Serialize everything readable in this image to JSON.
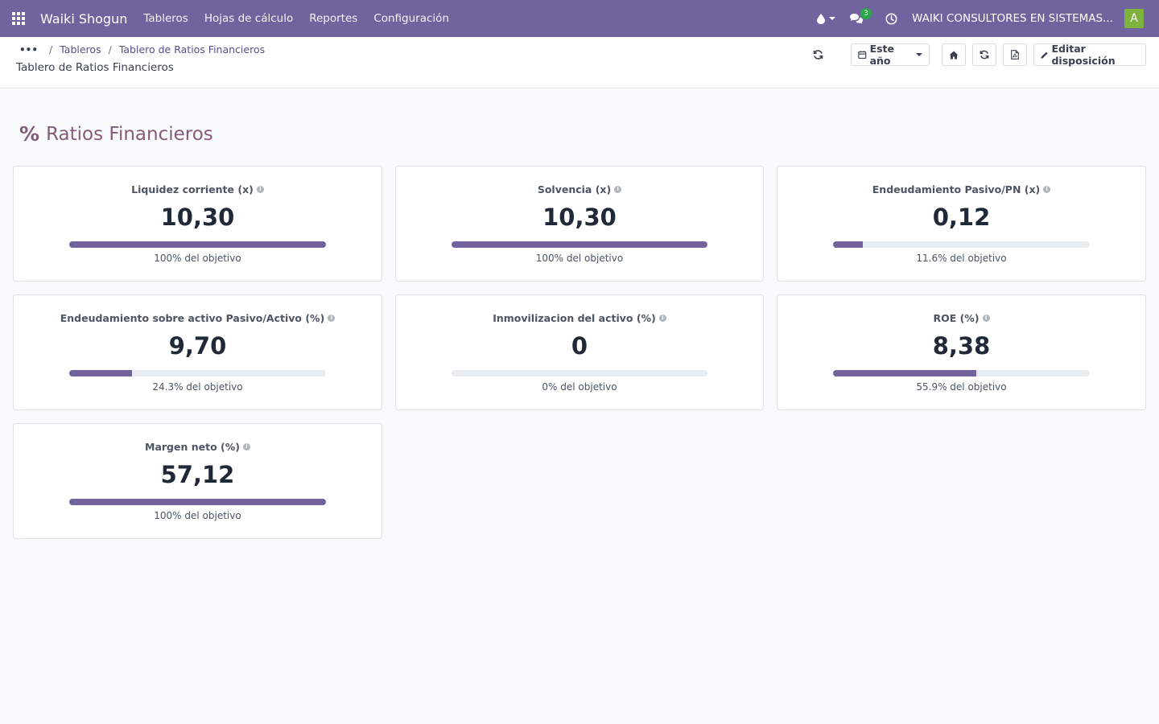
{
  "navbar": {
    "brand": "Waiki Shogun",
    "menu": [
      "Tableros",
      "Hojas de cálculo",
      "Reportes",
      "Configuración"
    ],
    "messages_badge": "3",
    "company": "WAIKI CONSULTORES EN SISTEMAS...",
    "avatar_letter": "A",
    "avatar_color": "#7db33d",
    "bar_color": "#71639e"
  },
  "breadcrumb": {
    "dots": "•••",
    "items": [
      "Tableros",
      "Tablero de Ratios Financieros"
    ]
  },
  "page_title": "Tablero de Ratios Financieros",
  "control_buttons": {
    "period": "Este año",
    "edit_layout": "Editar disposición"
  },
  "section": {
    "icon": "%",
    "title": "Ratios Financieros"
  },
  "cards": [
    {
      "title": "Liquidez corriente (x)",
      "value": "10,30",
      "progress": 1.0,
      "goal_text": "100% del objetivo"
    },
    {
      "title": "Solvencia (x)",
      "value": "10,30",
      "progress": 1.0,
      "goal_text": "100% del objetivo"
    },
    {
      "title": "Endeudamiento Pasivo/PN (x)",
      "value": "0,12",
      "progress": 0.116,
      "goal_text": "11.6% del objetivo"
    },
    {
      "title": "Endeudamiento sobre activo Pasivo/Activo (%)",
      "value": "9,70",
      "progress": 0.243,
      "goal_text": "24.3% del objetivo"
    },
    {
      "title": "Inmovilizacion del activo (%)",
      "value": "0",
      "progress": 0.0,
      "goal_text": "0% del objetivo"
    },
    {
      "title": "ROE (%)",
      "value": "8,38",
      "progress": 0.559,
      "goal_text": "55.9% del objetivo"
    },
    {
      "title": "Margen neto (%)",
      "value": "57,12",
      "progress": 1.0,
      "goal_text": "100% del objetivo"
    }
  ]
}
